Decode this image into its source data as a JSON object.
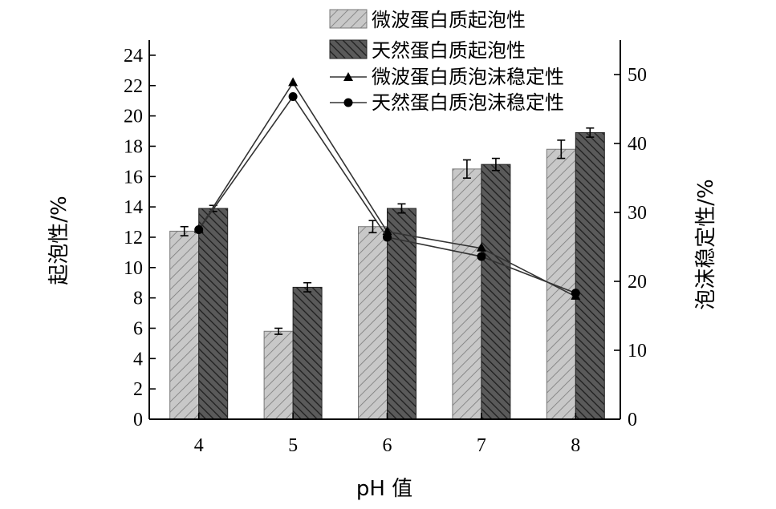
{
  "chart_data": {
    "type": "bar",
    "categories": [
      "4",
      "5",
      "6",
      "7",
      "8"
    ],
    "xlabel": "pH 值",
    "ylabel": "起泡性/%",
    "y2label": "泡沫稳定性/%",
    "ylim": [
      0,
      25
    ],
    "y2lim": [
      0,
      55
    ],
    "yticks": [
      0,
      2,
      4,
      6,
      8,
      10,
      12,
      14,
      16,
      18,
      20,
      22,
      24
    ],
    "y2ticks": [
      0,
      10,
      20,
      30,
      40,
      50
    ],
    "legend_position": "top-right",
    "bar_series": [
      {
        "name": "微波蛋白质起泡性",
        "values": [
          12.4,
          5.8,
          12.7,
          16.5,
          17.8
        ],
        "errors": [
          0.3,
          0.2,
          0.4,
          0.6,
          0.6
        ],
        "color": "#c8c8c8",
        "hatch_color": "#7a7a7a"
      },
      {
        "name": "天然蛋白质起泡性",
        "values": [
          13.9,
          8.7,
          13.9,
          16.8,
          18.9
        ],
        "errors": [
          0.2,
          0.3,
          0.3,
          0.4,
          0.3
        ],
        "color": "#555555",
        "hatch_color": "#1e1e1e"
      }
    ],
    "line_series": [
      {
        "name": "微波蛋白质泡沫稳定性",
        "marker": "triangle",
        "axis": "right",
        "values": [
          27.5,
          48.8,
          27.2,
          24.8,
          17.8
        ]
      },
      {
        "name": "天然蛋白质泡沫稳定性",
        "marker": "circle",
        "axis": "right",
        "values": [
          27.5,
          46.8,
          26.4,
          23.6,
          18.3
        ]
      }
    ]
  }
}
